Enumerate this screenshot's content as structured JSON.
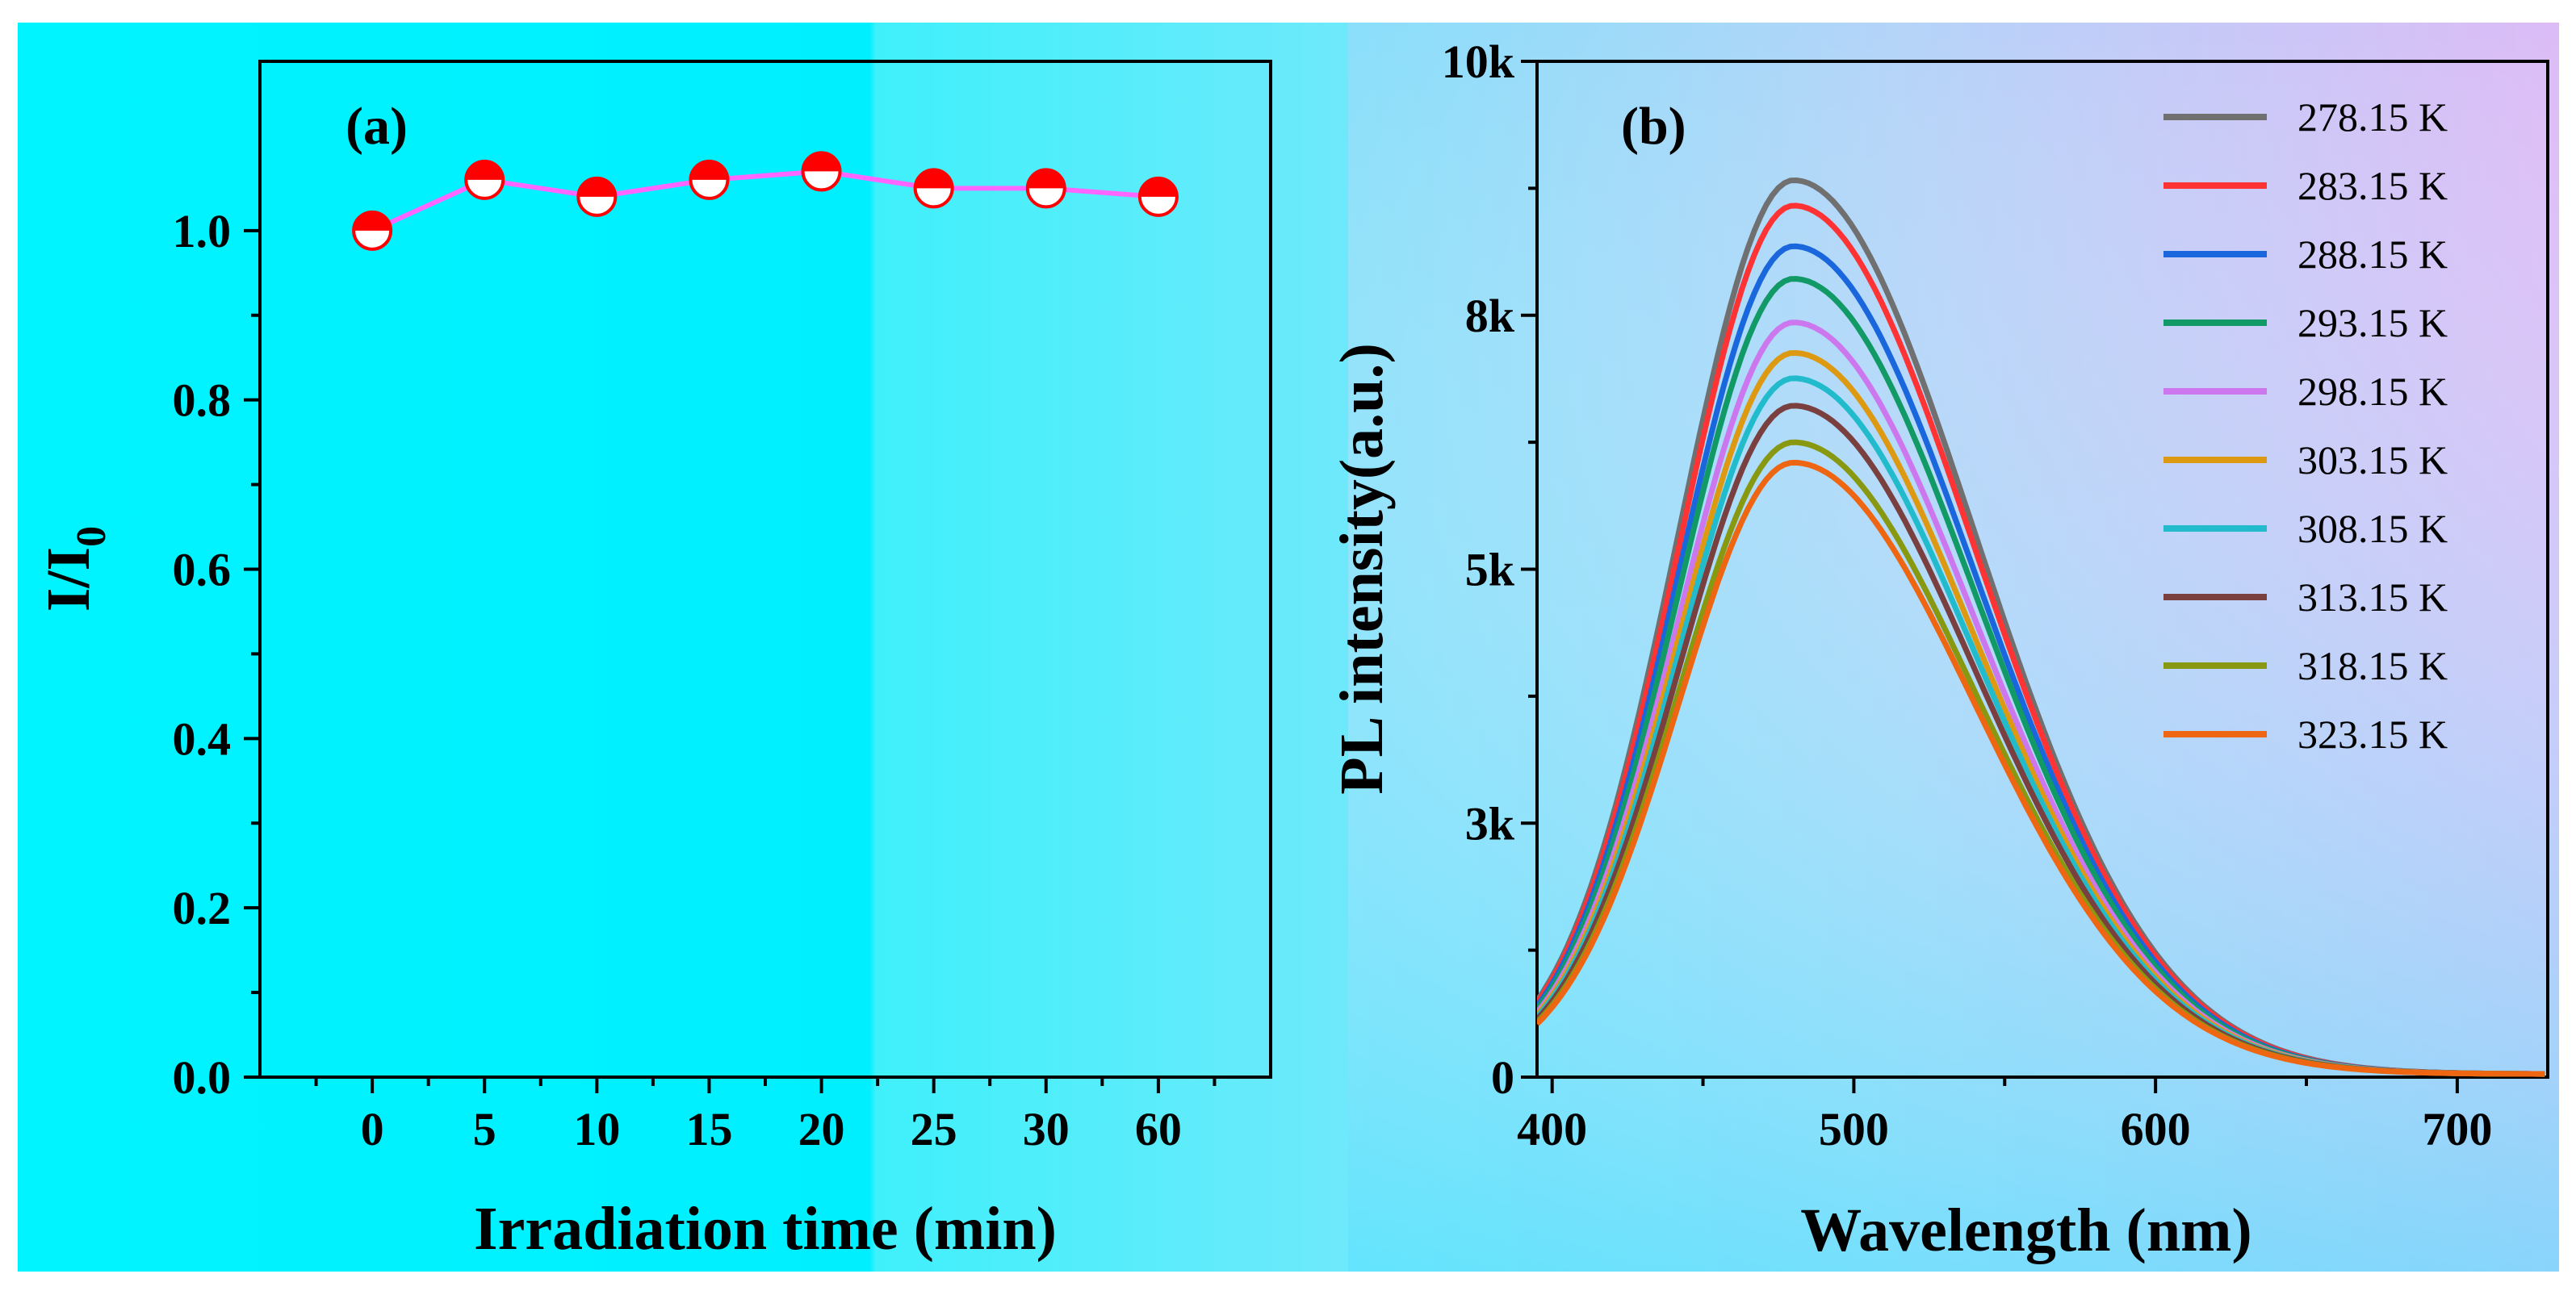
{
  "chart_data": [
    {
      "id": "a",
      "type": "line",
      "panel_label": "(a)",
      "xlabel": "Irradiation time (min)",
      "ylabel": "I/I",
      "ylabel_subscript": "0",
      "categories": [
        "0",
        "5",
        "10",
        "15",
        "20",
        "25",
        "30",
        "60"
      ],
      "values": [
        1.0,
        1.06,
        1.04,
        1.06,
        1.07,
        1.05,
        1.05,
        1.04
      ],
      "ylim": [
        0,
        1.2
      ],
      "yticks": [
        0.0,
        0.2,
        0.4,
        0.6,
        0.8,
        1.0
      ],
      "ytick_labels": [
        "0.0",
        "0.2",
        "0.4",
        "0.6",
        "0.8",
        "1.0"
      ],
      "line_color": "#ff66ff",
      "marker_color": "#ff0000",
      "marker": "half-filled circle (top red)",
      "grid": false
    },
    {
      "id": "b",
      "type": "line",
      "panel_label": "(b)",
      "xlabel": "Wavelength (nm)",
      "ylabel": "PL intensity(a.u.)",
      "xlim": [
        395,
        730
      ],
      "ylim": [
        0,
        10000
      ],
      "xticks": [
        400,
        500,
        600,
        700
      ],
      "xtick_labels": [
        "400",
        "500",
        "600",
        "700"
      ],
      "yticks": [
        0,
        2500,
        5000,
        7500,
        10000
      ],
      "ytick_labels": [
        "0",
        "3k",
        "5k",
        "8k",
        "10k"
      ],
      "legend_position": "top-right",
      "grid": false,
      "curve_shape": {
        "peak_wavelength_nm": 480,
        "left_width_nm": 38,
        "right_width_nm": 60
      },
      "series": [
        {
          "name": "278.15 K",
          "peak": 8800,
          "color": "#707070"
        },
        {
          "name": "283.15 K",
          "peak": 8550,
          "color": "#ff3333"
        },
        {
          "name": "288.15 K",
          "peak": 8150,
          "color": "#1a66dd"
        },
        {
          "name": "293.15 K",
          "peak": 7830,
          "color": "#119966"
        },
        {
          "name": "298.15 K",
          "peak": 7400,
          "color": "#cc77ee"
        },
        {
          "name": "303.15 K",
          "peak": 7100,
          "color": "#dd9911"
        },
        {
          "name": "308.15 K",
          "peak": 6850,
          "color": "#22bbcc"
        },
        {
          "name": "313.15 K",
          "peak": 6580,
          "color": "#7a3f3f"
        },
        {
          "name": "318.15 K",
          "peak": 6220,
          "color": "#889911"
        },
        {
          "name": "323.15 K",
          "peak": 6020,
          "color": "#ee6611"
        }
      ]
    }
  ]
}
